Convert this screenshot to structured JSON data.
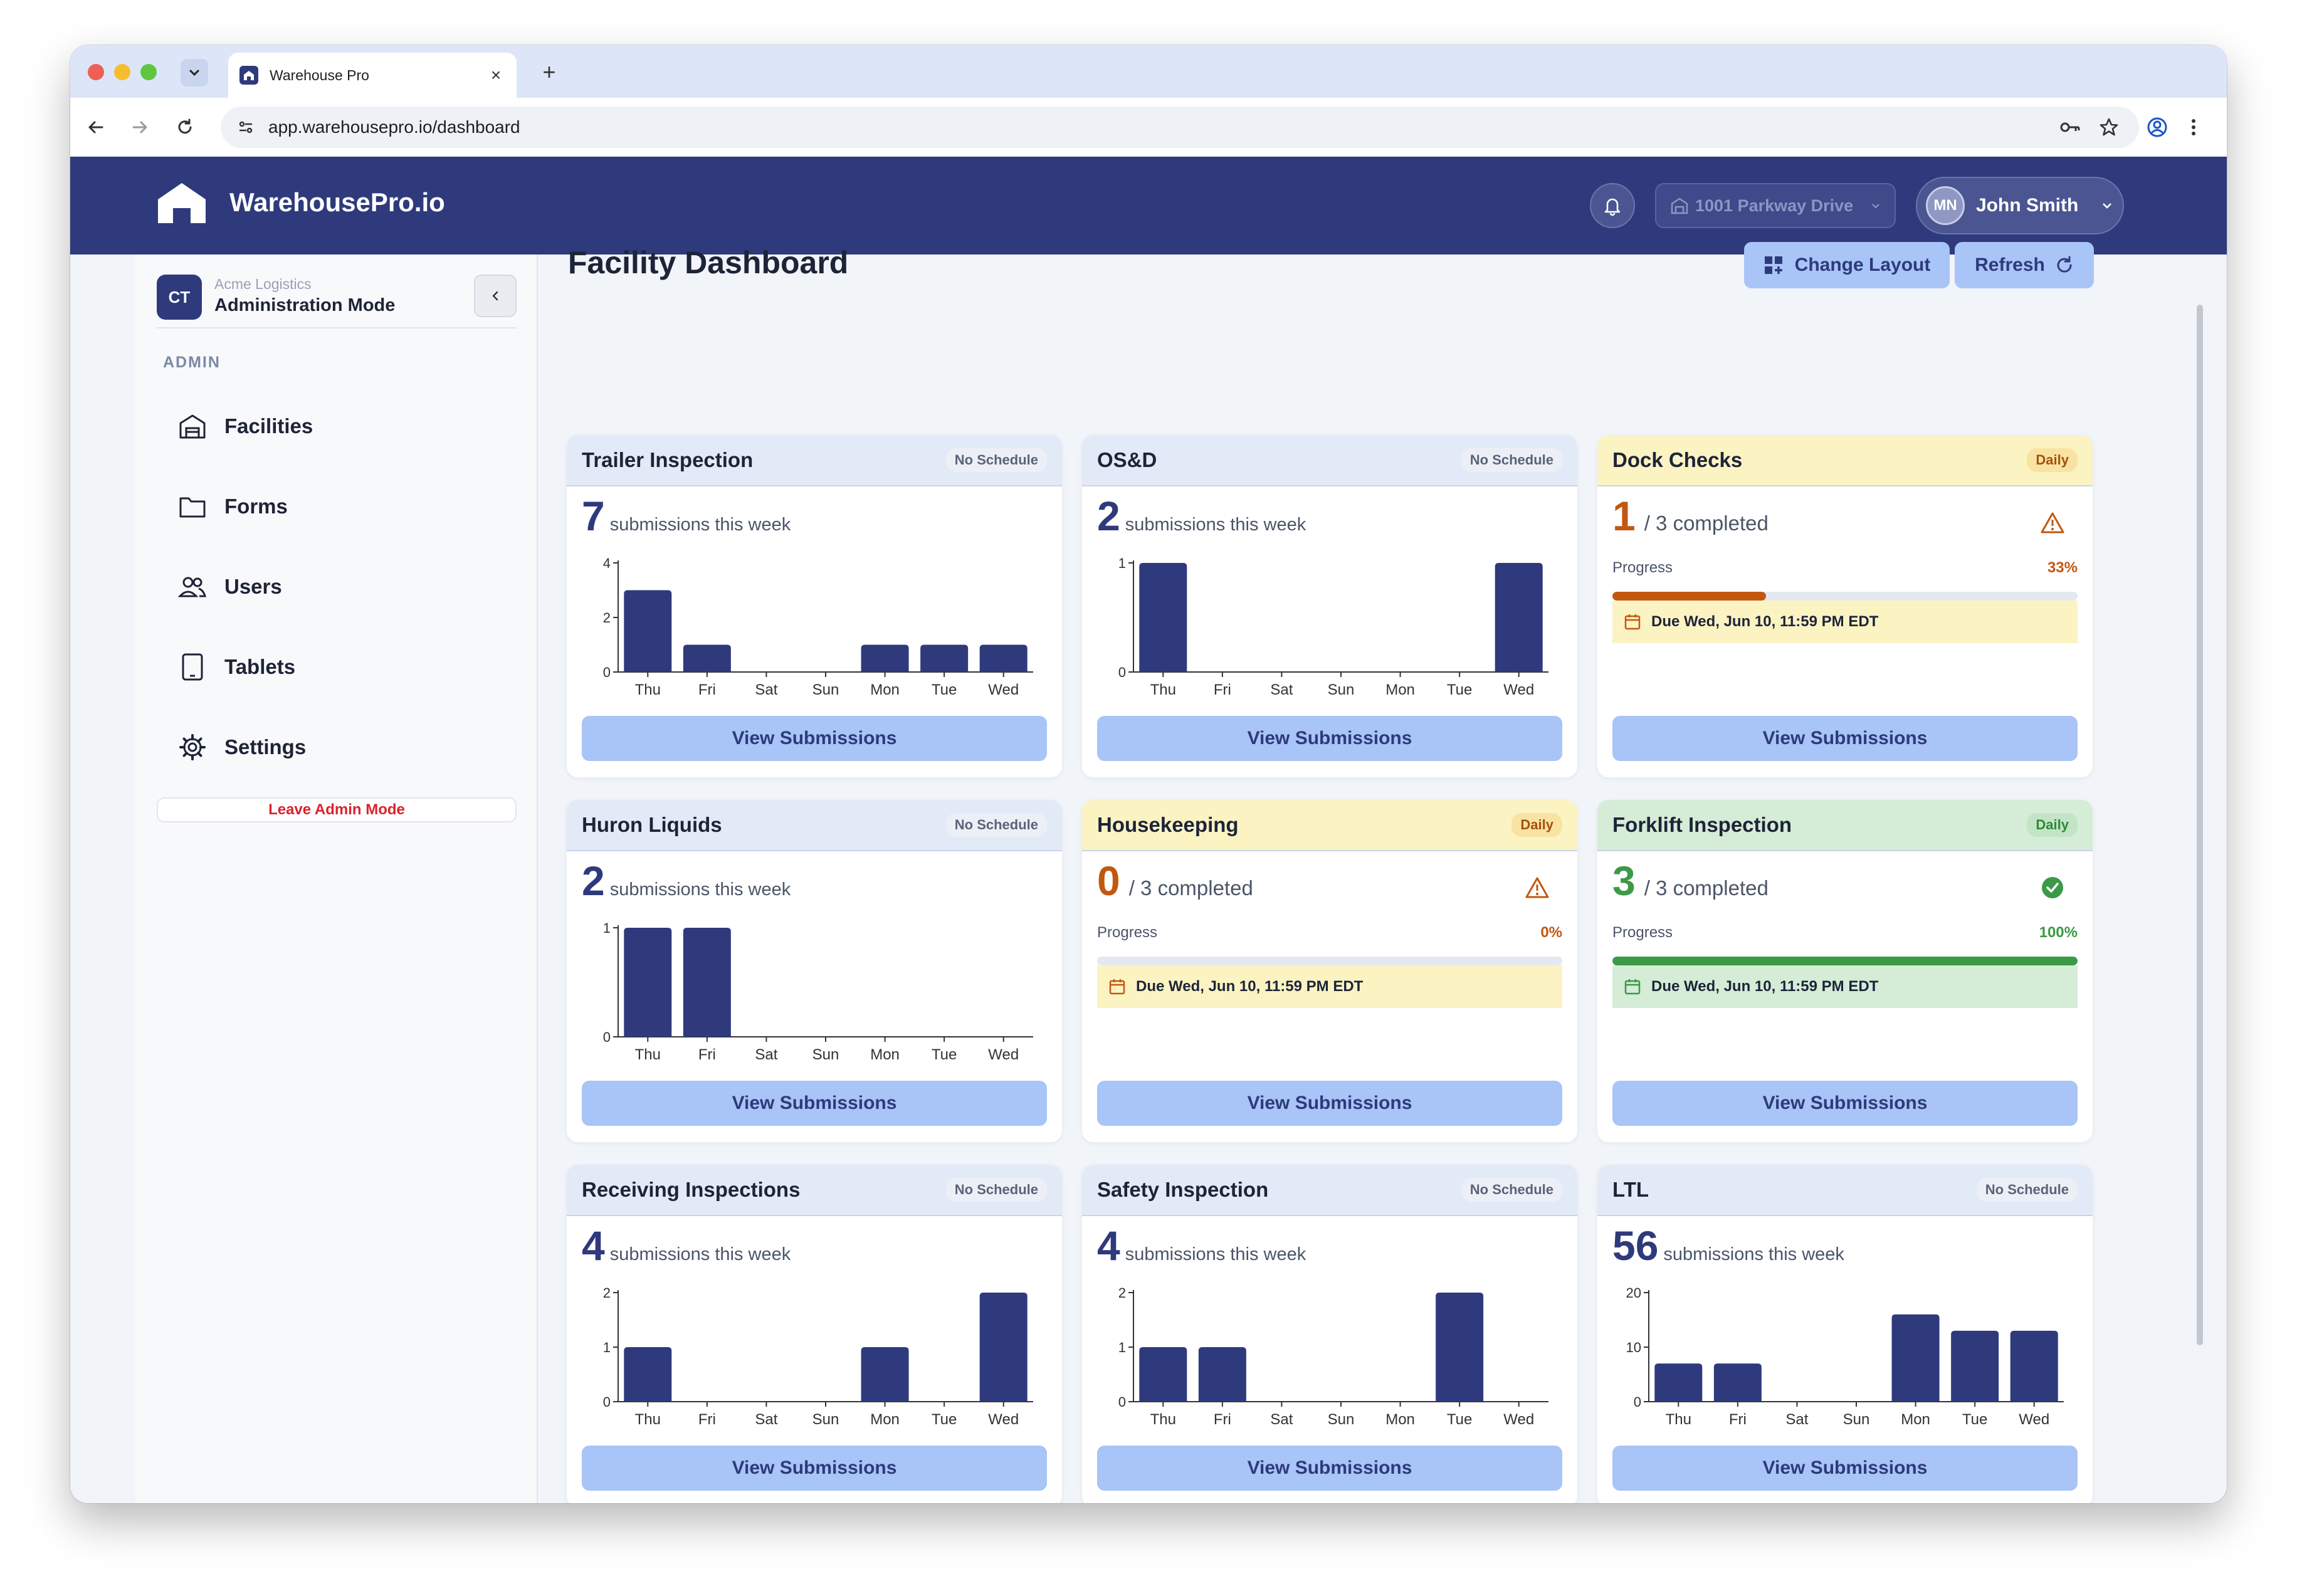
{
  "browser": {
    "tab_title": "Warehouse Pro",
    "url": "app.warehousepro.io/dashboard"
  },
  "header": {
    "app_name": "WarehousePro.io",
    "facility": "1001 Parkway Drive",
    "user_initials": "MN",
    "user_name": "John Smith"
  },
  "sidebar": {
    "org_badge": "CT",
    "org_name": "Acme Logistics",
    "mode": "Administration Mode",
    "section_label": "ADMIN",
    "items": [
      {
        "label": "Facilities",
        "icon": "building-icon"
      },
      {
        "label": "Forms",
        "icon": "folder-icon"
      },
      {
        "label": "Users",
        "icon": "users-icon"
      },
      {
        "label": "Tablets",
        "icon": "tablet-icon"
      },
      {
        "label": "Settings",
        "icon": "gear-icon"
      }
    ],
    "leave_label": "Leave Admin Mode"
  },
  "main": {
    "title": "Facility Dashboard",
    "change_layout_label": "Change Layout",
    "refresh_label": "Refresh"
  },
  "colors": {
    "brand": "#2e3a7c",
    "button": "#a9c4f6",
    "warning": "#c25810",
    "success": "#3c9a47"
  },
  "cards": [
    {
      "title": "Trailer Inspection",
      "schedule": "No Schedule",
      "count": "7",
      "count_label": "submissions this week",
      "button": "View Submissions"
    },
    {
      "title": "OS&D",
      "schedule": "No Schedule",
      "count": "2",
      "count_label": "submissions this week",
      "button": "View Submissions"
    },
    {
      "title": "Dock Checks",
      "schedule": "Daily",
      "completed": "1",
      "total_label": "/ 3 completed",
      "progress_label": "Progress",
      "progress_pct": "33%",
      "progress": 0.33,
      "due": "Due Wed, Jun 10, 11:59 PM EDT",
      "button": "View Submissions"
    },
    {
      "title": "Huron Liquids",
      "schedule": "No Schedule",
      "count": "2",
      "count_label": "submissions this week",
      "button": "View Submissions"
    },
    {
      "title": "Housekeeping",
      "schedule": "Daily",
      "completed": "0",
      "total_label": "/ 3 completed",
      "progress_label": "Progress",
      "progress_pct": "0%",
      "progress": 0,
      "due": "Due Wed, Jun 10, 11:59 PM EDT",
      "button": "View Submissions"
    },
    {
      "title": "Forklift Inspection",
      "schedule": "Daily",
      "completed": "3",
      "total_label": "/ 3 completed",
      "progress_label": "Progress",
      "progress_pct": "100%",
      "progress": 1.0,
      "due": "Due Wed, Jun 10, 11:59 PM EDT",
      "button": "View Submissions"
    },
    {
      "title": "Receiving Inspections",
      "schedule": "No Schedule",
      "count": "4",
      "count_label": "submissions this week",
      "button": "View Submissions"
    },
    {
      "title": "Safety Inspection",
      "schedule": "No Schedule",
      "count": "4",
      "count_label": "submissions this week",
      "button": "View Submissions"
    },
    {
      "title": "LTL",
      "schedule": "No Schedule",
      "count": "56",
      "count_label": "submissions this week",
      "button": "View Submissions"
    }
  ],
  "chart_data": [
    {
      "type": "bar",
      "chart": "Trailer Inspection",
      "categories": [
        "Thu",
        "Fri",
        "Sat",
        "Sun",
        "Mon",
        "Tue",
        "Wed"
      ],
      "values": [
        3,
        1,
        0,
        0,
        1,
        1,
        1
      ],
      "ylim": [
        0,
        4
      ],
      "yticks": [
        0,
        2,
        4
      ]
    },
    {
      "type": "bar",
      "chart": "OS&D",
      "categories": [
        "Thu",
        "Fri",
        "Sat",
        "Sun",
        "Mon",
        "Tue",
        "Wed"
      ],
      "values": [
        1,
        0,
        0,
        0,
        0,
        0,
        1
      ],
      "ylim": [
        0,
        1
      ],
      "yticks": [
        0,
        1
      ]
    },
    {
      "type": "bar",
      "chart": "Huron Liquids",
      "categories": [
        "Thu",
        "Fri",
        "Sat",
        "Sun",
        "Mon",
        "Tue",
        "Wed"
      ],
      "values": [
        1,
        1,
        0,
        0,
        0,
        0,
        0
      ],
      "ylim": [
        0,
        1
      ],
      "yticks": [
        0,
        1
      ]
    },
    {
      "type": "bar",
      "chart": "Receiving Inspections",
      "categories": [
        "Thu",
        "Fri",
        "Sat",
        "Sun",
        "Mon",
        "Tue",
        "Wed"
      ],
      "values": [
        1,
        0,
        0,
        0,
        1,
        0,
        2
      ],
      "ylim": [
        0,
        2
      ],
      "yticks": [
        0,
        1,
        2
      ]
    },
    {
      "type": "bar",
      "chart": "Safety Inspection",
      "categories": [
        "Thu",
        "Fri",
        "Sat",
        "Sun",
        "Mon",
        "Tue",
        "Wed"
      ],
      "values": [
        1,
        1,
        0,
        0,
        0,
        2,
        0
      ],
      "ylim": [
        0,
        2
      ],
      "yticks": [
        0,
        1,
        2
      ]
    },
    {
      "type": "bar",
      "chart": "LTL",
      "categories": [
        "Thu",
        "Fri",
        "Sat",
        "Sun",
        "Mon",
        "Tue",
        "Wed"
      ],
      "values": [
        7,
        7,
        0,
        0,
        16,
        13,
        13
      ],
      "ylim": [
        0,
        20
      ],
      "yticks": [
        0,
        10,
        20
      ]
    }
  ]
}
